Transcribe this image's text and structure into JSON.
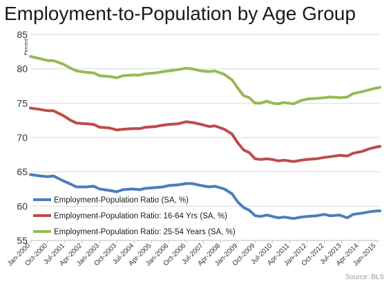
{
  "chart_data": {
    "type": "line",
    "title": "Employment-to-Population by Age Group",
    "ylabel": "Percent",
    "xlabel": "",
    "ylim": [
      55,
      85
    ],
    "yticks": [
      55,
      60,
      65,
      70,
      75,
      80,
      85
    ],
    "grid": "horizontal",
    "legend_position": "bottom-left inside",
    "source": "Source: BLS",
    "x_tick_labels": [
      "Jan-2000",
      "Oct-2000",
      "Jul-2001",
      "Apr-2002",
      "Jan-2003",
      "Oct-2003",
      "Jul-2004",
      "Apr-2005",
      "Jan-2006",
      "Oct-2006",
      "Jul-2007",
      "Apr-2008",
      "Jan-2009",
      "Oct-2009",
      "Jul-2010",
      "Apr-2011",
      "Jan-2012",
      "Oct-2012",
      "Jul-2013",
      "Apr-2014",
      "Jan-2015"
    ],
    "series": [
      {
        "name": "Employment-Population Ratio (SA, %)",
        "color": "#4a7ebb",
        "points": [
          [
            "2000-01",
            64.6
          ],
          [
            "2000-06",
            64.4
          ],
          [
            "2000-10",
            64.3
          ],
          [
            "2001-01",
            64.4
          ],
          [
            "2001-06",
            63.7
          ],
          [
            "2001-10",
            63.2
          ],
          [
            "2002-01",
            62.8
          ],
          [
            "2002-06",
            62.8
          ],
          [
            "2002-10",
            62.9
          ],
          [
            "2003-01",
            62.5
          ],
          [
            "2003-06",
            62.3
          ],
          [
            "2003-10",
            62.1
          ],
          [
            "2004-01",
            62.4
          ],
          [
            "2004-06",
            62.5
          ],
          [
            "2004-10",
            62.4
          ],
          [
            "2005-01",
            62.6
          ],
          [
            "2005-06",
            62.7
          ],
          [
            "2005-10",
            62.8
          ],
          [
            "2006-01",
            63.0
          ],
          [
            "2006-06",
            63.1
          ],
          [
            "2006-10",
            63.3
          ],
          [
            "2007-01",
            63.3
          ],
          [
            "2007-06",
            63.0
          ],
          [
            "2007-10",
            62.8
          ],
          [
            "2008-01",
            62.9
          ],
          [
            "2008-06",
            62.5
          ],
          [
            "2008-10",
            61.8
          ],
          [
            "2009-01",
            60.6
          ],
          [
            "2009-04",
            59.8
          ],
          [
            "2009-07",
            59.4
          ],
          [
            "2009-10",
            58.6
          ],
          [
            "2010-01",
            58.5
          ],
          [
            "2010-04",
            58.7
          ],
          [
            "2010-07",
            58.5
          ],
          [
            "2010-10",
            58.3
          ],
          [
            "2011-01",
            58.4
          ],
          [
            "2011-06",
            58.2
          ],
          [
            "2011-10",
            58.4
          ],
          [
            "2012-01",
            58.5
          ],
          [
            "2012-06",
            58.6
          ],
          [
            "2012-10",
            58.8
          ],
          [
            "2013-01",
            58.6
          ],
          [
            "2013-06",
            58.7
          ],
          [
            "2013-10",
            58.3
          ],
          [
            "2014-01",
            58.8
          ],
          [
            "2014-06",
            59.0
          ],
          [
            "2014-10",
            59.2
          ],
          [
            "2015-01",
            59.3
          ],
          [
            "2015-03",
            59.3
          ]
        ]
      },
      {
        "name": "Employment-Population Ratio: 16-64 Yrs (SA, %)",
        "color": "#be4b48",
        "points": [
          [
            "2000-01",
            74.3
          ],
          [
            "2000-06",
            74.1
          ],
          [
            "2000-10",
            73.9
          ],
          [
            "2001-01",
            73.9
          ],
          [
            "2001-06",
            73.2
          ],
          [
            "2001-10",
            72.5
          ],
          [
            "2002-01",
            72.1
          ],
          [
            "2002-06",
            72.0
          ],
          [
            "2002-10",
            71.9
          ],
          [
            "2003-01",
            71.5
          ],
          [
            "2003-06",
            71.4
          ],
          [
            "2003-10",
            71.1
          ],
          [
            "2004-01",
            71.2
          ],
          [
            "2004-06",
            71.3
          ],
          [
            "2004-10",
            71.3
          ],
          [
            "2005-01",
            71.5
          ],
          [
            "2005-06",
            71.6
          ],
          [
            "2005-10",
            71.8
          ],
          [
            "2006-01",
            71.9
          ],
          [
            "2006-06",
            72.0
          ],
          [
            "2006-10",
            72.3
          ],
          [
            "2007-01",
            72.2
          ],
          [
            "2007-06",
            71.9
          ],
          [
            "2007-10",
            71.6
          ],
          [
            "2008-01",
            71.7
          ],
          [
            "2008-06",
            71.2
          ],
          [
            "2008-10",
            70.5
          ],
          [
            "2009-01",
            69.2
          ],
          [
            "2009-04",
            68.2
          ],
          [
            "2009-07",
            67.8
          ],
          [
            "2009-10",
            66.9
          ],
          [
            "2010-01",
            66.8
          ],
          [
            "2010-04",
            66.9
          ],
          [
            "2010-07",
            66.8
          ],
          [
            "2010-10",
            66.6
          ],
          [
            "2011-01",
            66.7
          ],
          [
            "2011-06",
            66.5
          ],
          [
            "2011-10",
            66.7
          ],
          [
            "2012-01",
            66.8
          ],
          [
            "2012-06",
            66.9
          ],
          [
            "2012-10",
            67.1
          ],
          [
            "2013-01",
            67.2
          ],
          [
            "2013-06",
            67.4
          ],
          [
            "2013-10",
            67.3
          ],
          [
            "2014-01",
            67.7
          ],
          [
            "2014-06",
            68.0
          ],
          [
            "2014-10",
            68.4
          ],
          [
            "2015-01",
            68.6
          ],
          [
            "2015-03",
            68.7
          ]
        ]
      },
      {
        "name": "Employment-Population Ratio: 25-54 Years (SA, %)",
        "color": "#98b954",
        "points": [
          [
            "2000-01",
            81.8
          ],
          [
            "2000-06",
            81.5
          ],
          [
            "2000-10",
            81.2
          ],
          [
            "2001-01",
            81.2
          ],
          [
            "2001-06",
            80.7
          ],
          [
            "2001-10",
            80.1
          ],
          [
            "2002-01",
            79.7
          ],
          [
            "2002-06",
            79.5
          ],
          [
            "2002-10",
            79.4
          ],
          [
            "2003-01",
            79.0
          ],
          [
            "2003-06",
            78.9
          ],
          [
            "2003-10",
            78.7
          ],
          [
            "2004-01",
            79.0
          ],
          [
            "2004-06",
            79.1
          ],
          [
            "2004-10",
            79.1
          ],
          [
            "2005-01",
            79.3
          ],
          [
            "2005-06",
            79.4
          ],
          [
            "2005-10",
            79.6
          ],
          [
            "2006-01",
            79.7
          ],
          [
            "2006-06",
            79.9
          ],
          [
            "2006-10",
            80.1
          ],
          [
            "2007-01",
            80.0
          ],
          [
            "2007-06",
            79.7
          ],
          [
            "2007-10",
            79.6
          ],
          [
            "2008-01",
            79.7
          ],
          [
            "2008-06",
            79.2
          ],
          [
            "2008-10",
            78.4
          ],
          [
            "2009-01",
            77.2
          ],
          [
            "2009-04",
            76.1
          ],
          [
            "2009-07",
            75.8
          ],
          [
            "2009-10",
            75.0
          ],
          [
            "2010-01",
            75.0
          ],
          [
            "2010-04",
            75.3
          ],
          [
            "2010-07",
            75.0
          ],
          [
            "2010-10",
            74.9
          ],
          [
            "2011-01",
            75.1
          ],
          [
            "2011-06",
            74.9
          ],
          [
            "2011-10",
            75.4
          ],
          [
            "2012-01",
            75.6
          ],
          [
            "2012-06",
            75.7
          ],
          [
            "2012-10",
            75.8
          ],
          [
            "2013-01",
            75.9
          ],
          [
            "2013-06",
            75.8
          ],
          [
            "2013-10",
            75.9
          ],
          [
            "2014-01",
            76.4
          ],
          [
            "2014-06",
            76.7
          ],
          [
            "2014-10",
            77.0
          ],
          [
            "2015-01",
            77.2
          ],
          [
            "2015-03",
            77.3
          ]
        ]
      }
    ]
  }
}
